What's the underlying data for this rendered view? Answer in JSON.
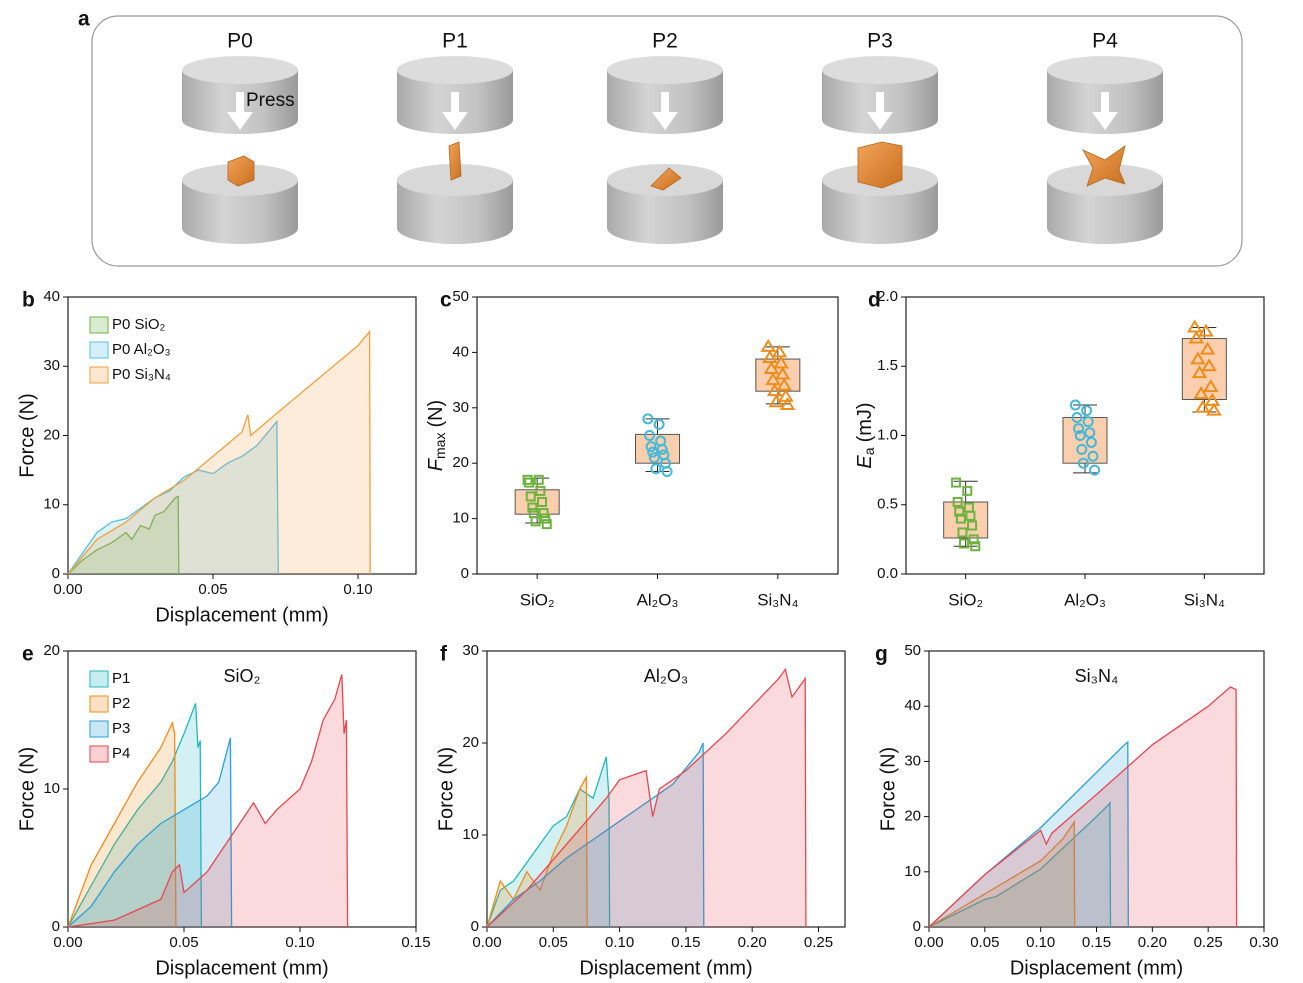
{
  "diagram": {
    "panel": "a",
    "press": "Press",
    "labels": [
      {
        "text": "P0",
        "color": "#111111"
      },
      {
        "text": "P1",
        "color": "#22b8bd"
      },
      {
        "text": "P2",
        "color": "#f08c1a"
      },
      {
        "text": "P3",
        "color": "#2a9fd8"
      },
      {
        "text": "P4",
        "color": "#e8474f"
      }
    ]
  },
  "chart_data": [
    {
      "type": "area",
      "panel": "b",
      "xlabel": "Displacement (mm)",
      "ylabel": "Force (N)",
      "legend": "upper left",
      "xlim": [
        0,
        0.12
      ],
      "xticks": [
        {
          "value": 0,
          "label": "0.00"
        },
        0.05,
        {
          "value": 0.1,
          "label": "0.10"
        }
      ],
      "ylim": [
        0,
        40
      ],
      "yticks": [
        0,
        10,
        20,
        30,
        40
      ],
      "series": [
        {
          "name": "P0 SiO₂",
          "color": "#6db33f",
          "x": [
            0,
            0.005,
            0.01,
            0.015,
            0.02,
            0.022,
            0.025,
            0.028,
            0.03,
            0.033,
            0.035,
            0.037,
            0.038,
            0.0382
          ],
          "values": [
            0,
            2,
            3.5,
            4.5,
            6,
            5,
            7,
            6.5,
            8.5,
            9,
            10,
            11,
            11.2,
            0
          ]
        },
        {
          "name": "P0 Al₂O₃",
          "color": "#57c0e6",
          "x": [
            0,
            0.005,
            0.01,
            0.015,
            0.02,
            0.025,
            0.03,
            0.035,
            0.04,
            0.045,
            0.05,
            0.055,
            0.06,
            0.065,
            0.07,
            0.072,
            0.0725
          ],
          "values": [
            0,
            3,
            6,
            7.5,
            8,
            9.5,
            11,
            12,
            14,
            15,
            14.5,
            16,
            17,
            18.5,
            21,
            22,
            0
          ]
        },
        {
          "name": "P0 Si₃N₄",
          "color": "#f0a040",
          "x": [
            0,
            0.01,
            0.02,
            0.03,
            0.04,
            0.05,
            0.06,
            0.062,
            0.063,
            0.07,
            0.08,
            0.09,
            0.1,
            0.104,
            0.1042
          ],
          "values": [
            0,
            5,
            7.5,
            11,
            13.5,
            17,
            20.5,
            23,
            20,
            22.5,
            26,
            29.5,
            33,
            35,
            0
          ]
        }
      ]
    },
    {
      "type": "box",
      "panel": "c",
      "ylabel": {
        "symbol": "F",
        "subscript": "max",
        "unit": "(N)"
      },
      "categories": [
        "SiO₂",
        "Al₂O₃",
        "Si₃N₄"
      ],
      "colors": [
        "#6db33f",
        "#45b8d8",
        "#f08c1a"
      ],
      "markers": [
        "square",
        "circle",
        "triangle"
      ],
      "box_color": "#fbcfae",
      "ylim": [
        0,
        50
      ],
      "yticks": [
        0,
        10,
        20,
        30,
        40,
        50
      ],
      "boxes": [
        {
          "min": 9.2,
          "q1": 10.8,
          "q3": 15.2,
          "max": 17.3
        },
        {
          "min": 18.5,
          "q1": 20,
          "q3": 25.2,
          "max": 28
        },
        {
          "min": 30.7,
          "q1": 33,
          "q3": 38.8,
          "max": 41
        }
      ],
      "points": [
        [
          17,
          17,
          16.5,
          15,
          14,
          13,
          12,
          11,
          11,
          10,
          9.5,
          9
        ],
        [
          28,
          27,
          25,
          24,
          23,
          22.5,
          22,
          21.5,
          21,
          20,
          19,
          18.5
        ],
        [
          41,
          40,
          39,
          38,
          37,
          36,
          35,
          34,
          33,
          32,
          31,
          30.5
        ]
      ]
    },
    {
      "type": "box",
      "panel": "d",
      "ylabel": {
        "symbol": "E",
        "subscript": "a",
        "unit": "(mJ)"
      },
      "categories": [
        "SiO₂",
        "Al₂O₃",
        "Si₃N₄"
      ],
      "colors": [
        "#6db33f",
        "#45b8d8",
        "#f08c1a"
      ],
      "markers": [
        "square",
        "circle",
        "triangle"
      ],
      "box_color": "#fbcfae",
      "ylim": [
        0,
        2
      ],
      "yticks": [
        {
          "value": 0,
          "label": "0.0"
        },
        0.5,
        {
          "value": 1,
          "label": "1.0"
        },
        1.5,
        {
          "value": 2,
          "label": "2.0"
        }
      ],
      "boxes": [
        {
          "min": 0.2,
          "q1": 0.26,
          "q3": 0.52,
          "max": 0.67
        },
        {
          "min": 0.73,
          "q1": 0.8,
          "q3": 1.13,
          "max": 1.22
        },
        {
          "min": 1.17,
          "q1": 1.26,
          "q3": 1.7,
          "max": 1.78
        }
      ],
      "points": [
        [
          0.66,
          0.6,
          0.52,
          0.48,
          0.45,
          0.42,
          0.4,
          0.35,
          0.3,
          0.25,
          0.22,
          0.2
        ],
        [
          1.22,
          1.18,
          1.13,
          1.1,
          1.05,
          1.02,
          1.0,
          0.95,
          0.9,
          0.85,
          0.8,
          0.75
        ],
        [
          1.78,
          1.75,
          1.7,
          1.62,
          1.55,
          1.5,
          1.45,
          1.35,
          1.3,
          1.25,
          1.2,
          1.18
        ]
      ]
    },
    {
      "type": "area",
      "panel": "e",
      "xlabel": "Displacement (mm)",
      "ylabel": "Force (N)",
      "legend": "upper left",
      "annotation": {
        "text": "SiO₂",
        "color": "#6db33f"
      },
      "xlim": [
        0,
        0.15
      ],
      "xticks": [
        {
          "value": 0,
          "label": "0.00"
        },
        0.05,
        {
          "value": 0.1,
          "label": "0.10"
        },
        0.15
      ],
      "ylim": [
        0,
        20
      ],
      "yticks": [
        0,
        10,
        20
      ],
      "series": [
        {
          "name": "P1",
          "color": "#22b8bd",
          "x": [
            0,
            0.01,
            0.02,
            0.03,
            0.04,
            0.045,
            0.05,
            0.055,
            0.056,
            0.057,
            0.0575
          ],
          "values": [
            0,
            3,
            6,
            8.5,
            10.5,
            12,
            14,
            16.2,
            13,
            13.5,
            0
          ]
        },
        {
          "name": "P2",
          "color": "#f08c1a",
          "x": [
            0,
            0.01,
            0.02,
            0.03,
            0.04,
            0.045,
            0.046,
            0.0465
          ],
          "values": [
            0,
            4.5,
            7.5,
            10.5,
            13,
            14.8,
            14,
            0
          ]
        },
        {
          "name": "P3",
          "color": "#2a9fd8",
          "x": [
            0,
            0.01,
            0.02,
            0.03,
            0.04,
            0.05,
            0.06,
            0.065,
            0.07,
            0.0705
          ],
          "values": [
            0,
            1.5,
            4,
            6,
            7.5,
            8.5,
            9.5,
            10.5,
            13.7,
            0
          ]
        },
        {
          "name": "P4",
          "color": "#e8474f",
          "x": [
            0,
            0.02,
            0.04,
            0.045,
            0.048,
            0.05,
            0.06,
            0.07,
            0.08,
            0.085,
            0.09,
            0.1,
            0.105,
            0.11,
            0.115,
            0.118,
            0.119,
            0.12,
            0.1205
          ],
          "values": [
            0,
            0.5,
            2,
            4,
            4.5,
            2.5,
            4,
            6.5,
            9,
            7.5,
            8.5,
            10,
            12,
            15,
            16.5,
            18.3,
            14,
            15,
            0
          ]
        }
      ]
    },
    {
      "type": "area",
      "panel": "f",
      "xlabel": "Displacement (mm)",
      "ylabel": "Force (N)",
      "annotation": {
        "text": "Al₂O₃",
        "color": "#45b8d8"
      },
      "xlim": [
        0,
        0.27
      ],
      "xticks": [
        {
          "value": 0,
          "label": "0.00"
        },
        0.05,
        {
          "value": 0.1,
          "label": "0.10"
        },
        0.15,
        {
          "value": 0.2,
          "label": "0.20"
        },
        0.25
      ],
      "ylim": [
        0,
        30
      ],
      "yticks": [
        0,
        10,
        20,
        30
      ],
      "series": [
        {
          "name": "P1",
          "color": "#22b8bd",
          "x": [
            0,
            0.01,
            0.02,
            0.03,
            0.04,
            0.05,
            0.06,
            0.07,
            0.08,
            0.09,
            0.092,
            0.0925
          ],
          "values": [
            0,
            4,
            5,
            7,
            9,
            11,
            12,
            15,
            14,
            18.5,
            14,
            0
          ]
        },
        {
          "name": "P2",
          "color": "#f08c1a",
          "x": [
            0,
            0.01,
            0.02,
            0.03,
            0.04,
            0.05,
            0.06,
            0.07,
            0.075,
            0.0755
          ],
          "values": [
            0,
            5,
            3,
            6,
            4,
            8,
            11,
            15,
            16.3,
            0
          ]
        },
        {
          "name": "P3",
          "color": "#2a9fd8",
          "x": [
            0,
            0.02,
            0.04,
            0.06,
            0.08,
            0.1,
            0.12,
            0.14,
            0.16,
            0.163,
            0.1635
          ],
          "values": [
            0,
            3,
            5,
            7.5,
            9.5,
            11.5,
            13.5,
            15.5,
            19,
            20,
            0
          ]
        },
        {
          "name": "P4",
          "color": "#e8474f",
          "x": [
            0,
            0.03,
            0.06,
            0.09,
            0.1,
            0.12,
            0.125,
            0.13,
            0.15,
            0.18,
            0.2,
            0.22,
            0.225,
            0.23,
            0.24,
            0.2405
          ],
          "values": [
            0,
            4,
            9,
            14,
            16,
            17,
            12,
            15,
            17,
            21,
            24,
            27,
            28,
            25,
            27,
            0
          ]
        }
      ]
    },
    {
      "type": "area",
      "panel": "g",
      "xlabel": "Displacement (mm)",
      "ylabel": "Force (N)",
      "annotation": {
        "text": "Si₃N₄",
        "color": "#f08c1a"
      },
      "xlim": [
        0,
        0.3
      ],
      "xticks": [
        {
          "value": 0,
          "label": "0.00"
        },
        0.05,
        {
          "value": 0.1,
          "label": "0.10"
        },
        0.15,
        {
          "value": 0.2,
          "label": "0.20"
        },
        0.25,
        {
          "value": 0.3,
          "label": "0.30"
        }
      ],
      "ylim": [
        0,
        50
      ],
      "yticks": [
        0,
        10,
        20,
        30,
        40,
        50
      ],
      "series": [
        {
          "name": "P1",
          "color": "#22b8bd",
          "x": [
            0,
            0.05,
            0.06,
            0.1,
            0.15,
            0.16,
            0.162,
            0.1625
          ],
          "values": [
            0,
            5,
            5.5,
            10.5,
            20,
            22,
            22.5,
            0
          ]
        },
        {
          "name": "P2",
          "color": "#f08c1a",
          "x": [
            0,
            0.05,
            0.1,
            0.12,
            0.13,
            0.1305
          ],
          "values": [
            0,
            6,
            12,
            16,
            19,
            0
          ]
        },
        {
          "name": "P3",
          "color": "#2a9fd8",
          "x": [
            0,
            0.05,
            0.1,
            0.15,
            0.175,
            0.178,
            0.1785
          ],
          "values": [
            0,
            9.5,
            18,
            28,
            33,
            33.5,
            0
          ]
        },
        {
          "name": "P4",
          "color": "#e8474f",
          "x": [
            0,
            0.05,
            0.1,
            0.105,
            0.11,
            0.15,
            0.2,
            0.25,
            0.27,
            0.275,
            0.2755
          ],
          "values": [
            0,
            9.5,
            17.5,
            15,
            17,
            24,
            33,
            40,
            43.5,
            43,
            0
          ]
        }
      ]
    }
  ]
}
